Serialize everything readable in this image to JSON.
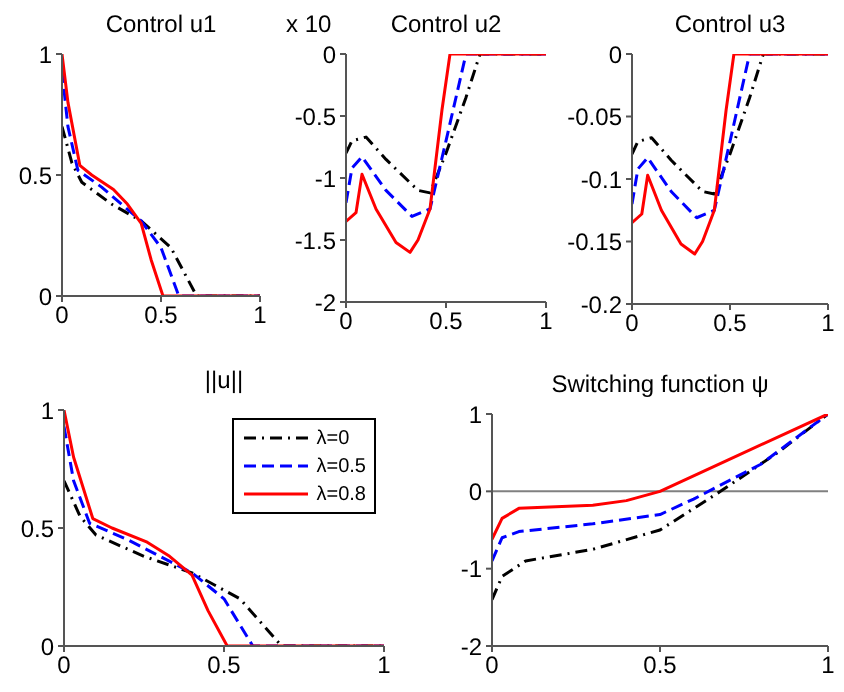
{
  "chart_data": [
    {
      "type": "line",
      "title": "Control u1",
      "xlim": [
        0,
        1
      ],
      "xticks": [
        0,
        0.5,
        1
      ],
      "ylim": [
        0,
        1
      ],
      "yticks": [
        0,
        0.5,
        1
      ],
      "grid": false,
      "legend": false,
      "series": [
        {
          "color": "#000000",
          "line_style": "dotted",
          "x": [
            0,
            0.05,
            0.1,
            0.25,
            0.4,
            0.55,
            0.68,
            1
          ],
          "values": [
            0.7,
            0.55,
            0.47,
            0.38,
            0.31,
            0.2,
            0,
            0
          ]
        },
        {
          "color": "#0000ff",
          "line_style": "dashed",
          "x": [
            0,
            0.03,
            0.08,
            0.2,
            0.4,
            0.5,
            0.59,
            1
          ],
          "values": [
            0.93,
            0.7,
            0.52,
            0.45,
            0.31,
            0.2,
            0,
            0
          ]
        },
        {
          "color": "#ff0000",
          "line_style": "solid",
          "x": [
            0,
            0.03,
            0.09,
            0.15,
            0.26,
            0.33,
            0.4,
            0.45,
            0.51,
            1
          ],
          "values": [
            1,
            0.8,
            0.54,
            0.5,
            0.44,
            0.38,
            0.3,
            0.15,
            0,
            0
          ]
        }
      ]
    },
    {
      "type": "line",
      "title": "Control u2",
      "annotations": [
        "x 10"
      ],
      "xlim": [
        0,
        1
      ],
      "xticks": [
        0,
        0.5,
        1
      ],
      "ylim": [
        -2,
        0
      ],
      "yticks": [
        -2,
        -1.5,
        -1,
        -0.5,
        0
      ],
      "grid": false,
      "legend": false,
      "series": [
        {
          "color": "#000000",
          "line_style": "dotted",
          "x": [
            0,
            0.03,
            0.1,
            0.2,
            0.36,
            0.42,
            0.5,
            0.6,
            0.67,
            1
          ],
          "values": [
            -0.8,
            -0.7,
            -0.67,
            -0.85,
            -1.1,
            -1.12,
            -0.8,
            -0.35,
            0,
            0
          ]
        },
        {
          "color": "#0000ff",
          "line_style": "dashed",
          "x": [
            0,
            0.03,
            0.08,
            0.2,
            0.33,
            0.42,
            0.5,
            0.6,
            1
          ],
          "values": [
            -1.2,
            -0.92,
            -0.83,
            -1.1,
            -1.31,
            -1.25,
            -0.7,
            0,
            0
          ]
        },
        {
          "color": "#ff0000",
          "line_style": "solid",
          "x": [
            0,
            0.05,
            0.08,
            0.15,
            0.25,
            0.32,
            0.36,
            0.42,
            0.48,
            0.52,
            1
          ],
          "values": [
            -1.35,
            -1.28,
            -0.97,
            -1.25,
            -1.52,
            -1.6,
            -1.5,
            -1.25,
            -0.45,
            0,
            0
          ]
        }
      ]
    },
    {
      "type": "line",
      "title": "Control u3",
      "xlim": [
        0,
        1
      ],
      "xticks": [
        0,
        0.5,
        1
      ],
      "ylim": [
        -0.2,
        0
      ],
      "yticks": [
        -0.2,
        -0.15,
        -0.1,
        -0.05,
        0
      ],
      "grid": false,
      "legend": false,
      "series": [
        {
          "color": "#000000",
          "line_style": "dotted",
          "x": [
            0,
            0.03,
            0.1,
            0.2,
            0.36,
            0.42,
            0.5,
            0.6,
            0.67,
            1
          ],
          "values": [
            -0.08,
            -0.07,
            -0.067,
            -0.085,
            -0.11,
            -0.112,
            -0.08,
            -0.035,
            0,
            0
          ]
        },
        {
          "color": "#0000ff",
          "line_style": "dashed",
          "x": [
            0,
            0.03,
            0.08,
            0.2,
            0.33,
            0.42,
            0.5,
            0.6,
            1
          ],
          "values": [
            -0.12,
            -0.092,
            -0.083,
            -0.11,
            -0.131,
            -0.125,
            -0.07,
            0,
            0
          ]
        },
        {
          "color": "#ff0000",
          "line_style": "solid",
          "x": [
            0,
            0.05,
            0.08,
            0.15,
            0.25,
            0.32,
            0.36,
            0.42,
            0.48,
            0.52,
            1
          ],
          "values": [
            -0.135,
            -0.128,
            -0.097,
            -0.125,
            -0.152,
            -0.16,
            -0.15,
            -0.125,
            -0.045,
            0,
            0
          ]
        }
      ]
    },
    {
      "type": "line",
      "title": "||u||",
      "xlim": [
        0,
        1
      ],
      "xticks": [
        0,
        0.5,
        1
      ],
      "ylim": [
        0,
        1
      ],
      "yticks": [
        0,
        0.5,
        1
      ],
      "grid": false,
      "legend": "top right",
      "series": [
        {
          "name": "λ=0",
          "color": "#000000",
          "line_style": "dotted",
          "x": [
            0,
            0.05,
            0.1,
            0.25,
            0.4,
            0.55,
            0.68,
            1
          ],
          "values": [
            0.7,
            0.55,
            0.47,
            0.38,
            0.31,
            0.2,
            0,
            0
          ]
        },
        {
          "name": "λ=0.5",
          "color": "#0000ff",
          "line_style": "dashed",
          "x": [
            0,
            0.03,
            0.08,
            0.2,
            0.4,
            0.5,
            0.59,
            1
          ],
          "values": [
            0.93,
            0.7,
            0.52,
            0.45,
            0.31,
            0.2,
            0,
            0
          ]
        },
        {
          "name": "λ=0.8",
          "color": "#ff0000",
          "line_style": "solid",
          "x": [
            0,
            0.03,
            0.09,
            0.15,
            0.26,
            0.33,
            0.4,
            0.45,
            0.51,
            1
          ],
          "values": [
            1,
            0.8,
            0.54,
            0.5,
            0.44,
            0.38,
            0.3,
            0.15,
            0,
            0
          ]
        }
      ]
    },
    {
      "type": "line",
      "title": "Switching function ψ",
      "xlim": [
        0,
        1
      ],
      "xticks": [
        0,
        0.5,
        1
      ],
      "ylim": [
        -2,
        1
      ],
      "yticks": [
        -2,
        -1,
        0,
        1
      ],
      "grid": false,
      "legend": false,
      "ref_lines": [
        {
          "axis": "y",
          "value": 0,
          "color": "#808080"
        }
      ],
      "series": [
        {
          "color": "#000000",
          "line_style": "dotted",
          "x": [
            0,
            0.03,
            0.1,
            0.3,
            0.5,
            0.68,
            0.85,
            1
          ],
          "values": [
            -1.4,
            -1.1,
            -0.9,
            -0.75,
            -0.5,
            0,
            0.5,
            1
          ]
        },
        {
          "color": "#0000ff",
          "line_style": "dashed",
          "x": [
            0,
            0.03,
            0.08,
            0.3,
            0.5,
            0.6,
            0.8,
            1
          ],
          "values": [
            -0.9,
            -0.6,
            -0.52,
            -0.42,
            -0.3,
            -0.1,
            0.35,
            1
          ]
        },
        {
          "color": "#ff0000",
          "line_style": "solid",
          "x": [
            0,
            0.03,
            0.08,
            0.3,
            0.4,
            0.5,
            0.7,
            1
          ],
          "values": [
            -0.62,
            -0.35,
            -0.22,
            -0.18,
            -0.12,
            0,
            0.4,
            1
          ]
        }
      ]
    }
  ]
}
